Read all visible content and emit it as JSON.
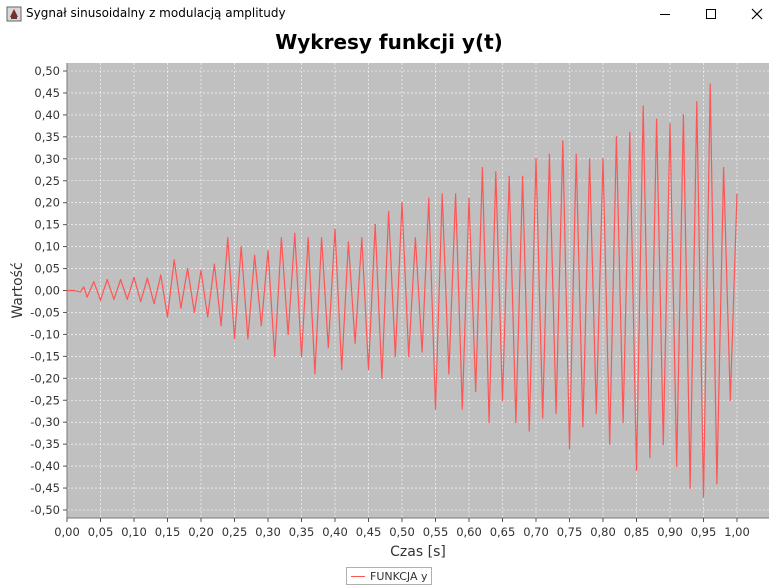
{
  "window": {
    "title": "Sygnał sinusoidalny z modulacją amplitudy",
    "buttons": {
      "minimize": "minimize-icon",
      "maximize": "maximize-icon",
      "close": "close-icon"
    }
  },
  "colors": {
    "plot_background": "#c0c0c0",
    "series_line": "#ff5555",
    "grid": "#ffffff"
  },
  "chart_data": {
    "type": "line",
    "title": "Wykresy funkcji y(t)",
    "xlabel": "Czas [s]",
    "ylabel": "Wartość",
    "xlim": [
      0,
      1.0
    ],
    "ylim": [
      -0.5,
      0.5
    ],
    "xticks": [
      "0,00",
      "0,05",
      "0,10",
      "0,15",
      "0,20",
      "0,25",
      "0,30",
      "0,35",
      "0,40",
      "0,45",
      "0,50",
      "0,55",
      "0,60",
      "0,65",
      "0,70",
      "0,75",
      "0,80",
      "0,85",
      "0,90",
      "0,95",
      "1,00"
    ],
    "yticks": [
      "0,50",
      "0,45",
      "0,40",
      "0,35",
      "0,30",
      "0,25",
      "0,20",
      "0,15",
      "0,10",
      "0,05",
      "0,00",
      "-0,05",
      "-0,10",
      "-0,15",
      "-0,20",
      "-0,25",
      "-0,30",
      "-0,35",
      "-0,40",
      "-0,45",
      "-0,50"
    ],
    "grid": true,
    "legend_position": "bottom-center",
    "series": [
      {
        "name": "FUNKCJA y",
        "x": [
          0.0,
          0.01,
          0.02,
          0.025,
          0.03,
          0.04,
          0.05,
          0.06,
          0.07,
          0.08,
          0.09,
          0.1,
          0.11,
          0.12,
          0.13,
          0.14,
          0.15,
          0.16,
          0.17,
          0.18,
          0.19,
          0.2,
          0.21,
          0.22,
          0.23,
          0.24,
          0.25,
          0.26,
          0.27,
          0.28,
          0.29,
          0.3,
          0.31,
          0.32,
          0.33,
          0.34,
          0.35,
          0.36,
          0.37,
          0.38,
          0.39,
          0.4,
          0.41,
          0.42,
          0.43,
          0.44,
          0.45,
          0.46,
          0.47,
          0.48,
          0.49,
          0.5,
          0.51,
          0.52,
          0.53,
          0.54,
          0.55,
          0.56,
          0.57,
          0.58,
          0.59,
          0.6,
          0.61,
          0.62,
          0.63,
          0.64,
          0.65,
          0.66,
          0.67,
          0.68,
          0.69,
          0.7,
          0.71,
          0.72,
          0.73,
          0.74,
          0.75,
          0.76,
          0.77,
          0.78,
          0.79,
          0.8,
          0.81,
          0.82,
          0.83,
          0.84,
          0.85,
          0.86,
          0.87,
          0.88,
          0.89,
          0.9,
          0.91,
          0.92,
          0.93,
          0.94,
          0.95,
          0.96,
          0.97,
          0.98,
          0.99,
          1.0
        ],
        "y": [
          0.0,
          0.0,
          -0.003,
          0.008,
          -0.015,
          0.02,
          -0.022,
          0.025,
          -0.02,
          0.025,
          -0.02,
          0.03,
          -0.025,
          0.028,
          -0.03,
          0.035,
          -0.06,
          0.07,
          -0.04,
          0.05,
          -0.05,
          0.045,
          -0.06,
          0.06,
          -0.08,
          0.12,
          -0.11,
          0.1,
          -0.11,
          0.08,
          -0.08,
          0.09,
          -0.15,
          0.12,
          -0.1,
          0.13,
          -0.15,
          0.12,
          -0.19,
          0.12,
          -0.13,
          0.14,
          -0.18,
          0.11,
          -0.12,
          0.12,
          -0.18,
          0.15,
          -0.2,
          0.18,
          -0.15,
          0.2,
          -0.15,
          0.12,
          -0.14,
          0.21,
          -0.27,
          0.22,
          -0.19,
          0.22,
          -0.27,
          0.21,
          -0.23,
          0.28,
          -0.3,
          0.27,
          -0.25,
          0.26,
          -0.3,
          0.26,
          -0.32,
          0.3,
          -0.29,
          0.31,
          -0.28,
          0.34,
          -0.36,
          0.31,
          -0.31,
          0.3,
          -0.28,
          0.3,
          -0.35,
          0.35,
          -0.3,
          0.36,
          -0.41,
          0.42,
          -0.38,
          0.39,
          -0.35,
          0.38,
          -0.4,
          0.4,
          -0.45,
          0.43,
          -0.47,
          0.47,
          -0.44,
          0.28,
          -0.25,
          0.22
        ]
      }
    ]
  },
  "legend": {
    "label": "FUNKCJA y"
  }
}
